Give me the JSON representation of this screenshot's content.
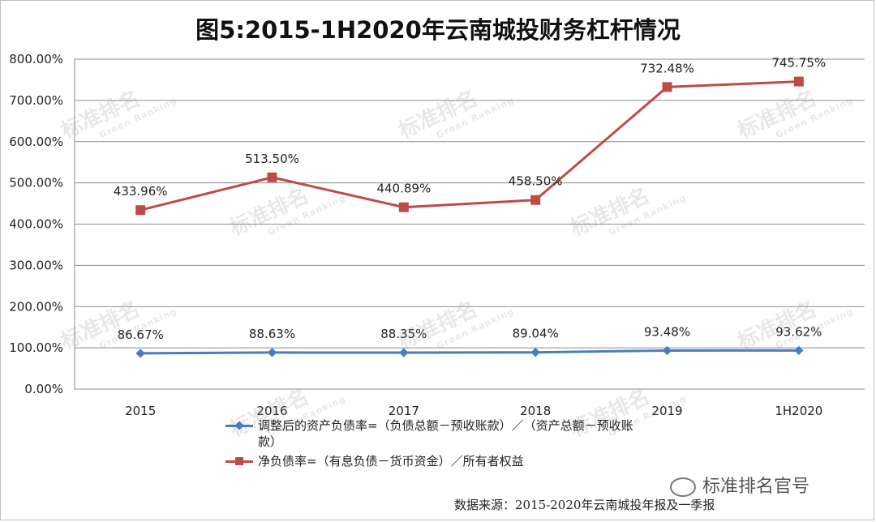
{
  "title": "图5:2015-1H2020年云南城投财务杠杆情况",
  "source": "数据来源：2015-2020年云南城投年报及一季报",
  "brand": "标准排名官号",
  "watermark": {
    "main": "标准排名",
    "sub": "Green Ranking"
  },
  "chart_data": {
    "type": "line",
    "categories": [
      "2015",
      "2016",
      "2017",
      "2018",
      "2019",
      "1H2020"
    ],
    "ylim": [
      0,
      800
    ],
    "yticks": [
      0,
      100,
      200,
      300,
      400,
      500,
      600,
      700,
      800
    ],
    "ytick_labels": [
      "0.00%",
      "100.00%",
      "200.00%",
      "300.00%",
      "400.00%",
      "500.00%",
      "600.00%",
      "700.00%",
      "800.00%"
    ],
    "grid": true,
    "legend_position": "bottom",
    "series": [
      {
        "name": "调整后的资产负债率=（负债总额－预收账款）/（资产总额－预收账款）",
        "legend_line1": "调整后的资产负债率=（负债总额－预收账款）／（资产总额－预收账",
        "legend_line2": "款）",
        "values": [
          86.67,
          88.63,
          88.35,
          89.04,
          93.48,
          93.62
        ],
        "labels": [
          "86.67%",
          "88.63%",
          "88.35%",
          "89.04%",
          "93.48%",
          "93.62%"
        ],
        "color": "#4a7ebb",
        "marker": "diamond"
      },
      {
        "name": "净负债率=（有息负债－货币资金）／所有者权益",
        "values": [
          433.96,
          513.5,
          440.89,
          458.5,
          732.48,
          745.75
        ],
        "labels": [
          "433.96%",
          "513.50%",
          "440.89%",
          "458.50%",
          "732.48%",
          "745.75%"
        ],
        "color": "#be4b48",
        "marker": "square"
      }
    ]
  }
}
